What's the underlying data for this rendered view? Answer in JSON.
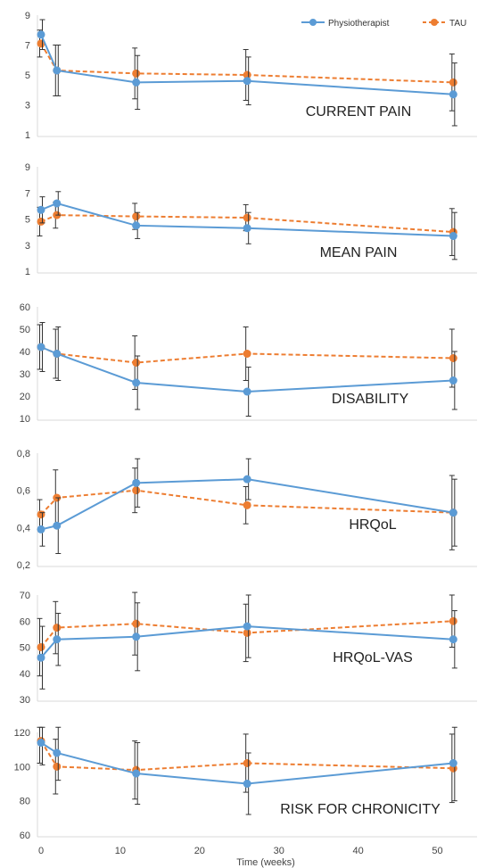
{
  "colors": {
    "physio": "#5b9bd5",
    "tau": "#ed7d31",
    "axis": "#d9d9d9",
    "errbar": "#333333"
  },
  "legend": {
    "placement": "top-right",
    "entries": [
      "Physiotherapist",
      "TAU"
    ]
  },
  "x_axis": {
    "label": "Time (weeks)",
    "ticks": [
      "0",
      "10",
      "20",
      "30",
      "40",
      "50"
    ],
    "xlim": [
      0,
      55
    ]
  },
  "chart_data": [
    {
      "type": "line",
      "title": "CURRENT PAIN",
      "ylim": [
        1,
        9
      ],
      "yticks": [
        "1",
        "3",
        "5",
        "7",
        "9"
      ],
      "x": [
        0,
        2,
        12,
        26,
        52
      ],
      "series": [
        {
          "name": "Physiotherapist",
          "values": [
            7.7,
            5.3,
            4.5,
            4.6,
            3.7
          ],
          "err": [
            1.0,
            1.7,
            1.8,
            1.6,
            2.1
          ]
        },
        {
          "name": "TAU",
          "values": [
            7.1,
            5.3,
            5.1,
            5.0,
            4.5
          ],
          "err": [
            0.9,
            1.7,
            1.7,
            1.7,
            1.9
          ]
        }
      ]
    },
    {
      "type": "line",
      "title": "MEAN PAIN",
      "ylim": [
        1,
        9
      ],
      "yticks": [
        "1",
        "3",
        "5",
        "7",
        "9"
      ],
      "x": [
        0,
        2,
        12,
        26,
        52
      ],
      "series": [
        {
          "name": "Physiotherapist",
          "values": [
            5.7,
            6.2,
            4.5,
            4.3,
            3.7
          ],
          "err": [
            1.0,
            0.9,
            1.0,
            1.2,
            1.8
          ]
        },
        {
          "name": "TAU",
          "values": [
            4.8,
            5.3,
            5.2,
            5.1,
            4.0
          ],
          "err": [
            1.1,
            1.0,
            1.0,
            1.0,
            1.8
          ]
        }
      ]
    },
    {
      "type": "line",
      "title": "DISABILITY",
      "ylim": [
        10,
        60
      ],
      "yticks": [
        "10",
        "20",
        "30",
        "40",
        "50",
        "60"
      ],
      "x": [
        0,
        2,
        12,
        26,
        52
      ],
      "series": [
        {
          "name": "Physiotherapist",
          "values": [
            42,
            39,
            26,
            22,
            27
          ],
          "err": [
            11,
            12,
            12,
            11,
            13
          ]
        },
        {
          "name": "TAU",
          "values": [
            42,
            39,
            35,
            39,
            37
          ],
          "err": [
            10,
            11,
            12,
            12,
            13
          ]
        }
      ]
    },
    {
      "type": "line",
      "title": "HRQoL",
      "ylim": [
        0.2,
        0.8
      ],
      "yticks": [
        "0,2",
        "0,4",
        "0,6",
        "0,8"
      ],
      "x": [
        0,
        2,
        12,
        26,
        52
      ],
      "series": [
        {
          "name": "Physiotherapist",
          "values": [
            0.39,
            0.41,
            0.64,
            0.66,
            0.48
          ],
          "err": [
            0.09,
            0.15,
            0.13,
            0.11,
            0.18
          ]
        },
        {
          "name": "TAU",
          "values": [
            0.47,
            0.56,
            0.6,
            0.52,
            0.48
          ],
          "err": [
            0.08,
            0.15,
            0.12,
            0.1,
            0.2
          ]
        }
      ]
    },
    {
      "type": "line",
      "title": "HRQoL-VAS",
      "ylim": [
        30,
        70
      ],
      "yticks": [
        "30",
        "40",
        "50",
        "60",
        "70"
      ],
      "x": [
        0,
        2,
        12,
        26,
        52
      ],
      "series": [
        {
          "name": "Physiotherapist",
          "values": [
            46,
            53,
            54,
            58,
            53
          ],
          "err": [
            12,
            10,
            13,
            12,
            11
          ]
        },
        {
          "name": "TAU",
          "values": [
            50,
            57.5,
            59,
            55.5,
            60
          ],
          "err": [
            11,
            10,
            12,
            11,
            10
          ]
        }
      ]
    },
    {
      "type": "line",
      "title": "RISK FOR CHRONICITY",
      "ylim": [
        60,
        120
      ],
      "yticks": [
        "60",
        "80",
        "100",
        "120"
      ],
      "x": [
        0,
        2,
        12,
        26,
        52
      ],
      "series": [
        {
          "name": "Physiotherapist",
          "values": [
            114,
            108,
            96,
            90,
            102
          ],
          "err": [
            13,
            16,
            18,
            18,
            22
          ]
        },
        {
          "name": "TAU",
          "values": [
            115,
            100,
            98,
            102,
            99
          ],
          "err": [
            13,
            16,
            17,
            17,
            20
          ]
        }
      ]
    }
  ]
}
